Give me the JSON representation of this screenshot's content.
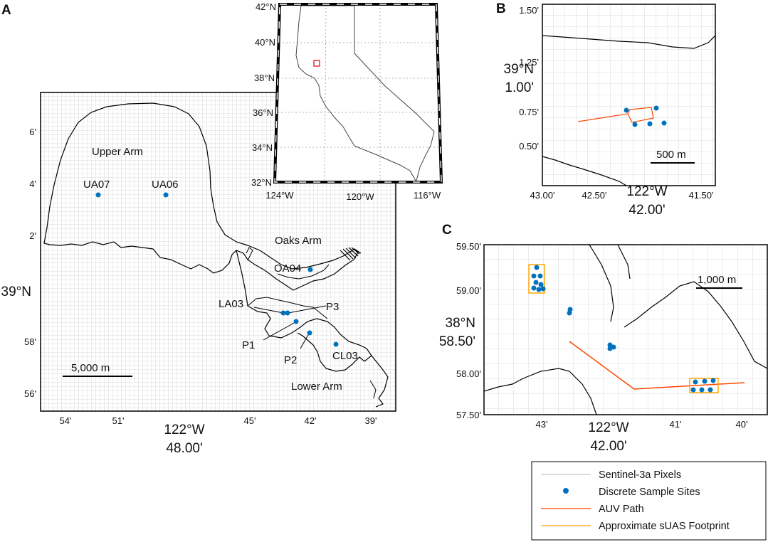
{
  "colors": {
    "grid": "#c8c8c8",
    "site": "#0072bd",
    "auv": "#ff4500",
    "suas": "#ffa500",
    "coast": "#000000",
    "inset_box": "#e00000"
  },
  "panel_a": {
    "label": "A",
    "y_ticks": [
      "6'",
      "4'",
      "2'",
      "58'",
      "56'"
    ],
    "y_major_lines": [
      "39°N",
      "N"
    ],
    "x_ticks": [
      "54'",
      "51'",
      "45'",
      "42'",
      "39'"
    ],
    "x_major_lines": [
      "122°W",
      "48.00'"
    ],
    "scale_bar": "5,000 m",
    "regions": {
      "upper": "Upper Arm",
      "oaks": "Oaks Arm",
      "lower": "Lower Arm"
    },
    "sites": [
      {
        "id": "UA07"
      },
      {
        "id": "UA06"
      },
      {
        "id": "OA04"
      },
      {
        "id": "LA03"
      },
      {
        "id": "P3"
      },
      {
        "id": "P1"
      },
      {
        "id": "P2"
      },
      {
        "id": "CL03"
      }
    ]
  },
  "inset": {
    "lat_ticks": [
      "42°N",
      "40°N",
      "38°N",
      "36°N",
      "34°N",
      "32°N"
    ],
    "lon_ticks": [
      "124°W",
      "120°W",
      "116°W"
    ]
  },
  "panel_b": {
    "label": "B",
    "y_ticks": [
      "1.50'",
      "1.25'",
      "0.75'",
      "0.50'"
    ],
    "y_major_lines": [
      "39°N",
      "1.00'"
    ],
    "x_ticks": [
      "43.00'",
      "42.50'",
      "41.50'"
    ],
    "x_major_lines": [
      "122°W",
      "42.00'"
    ],
    "scale_bar": "500 m"
  },
  "panel_c": {
    "label": "C",
    "y_ticks": [
      "59.50'",
      "59.00'",
      "58.00'",
      "57.50'"
    ],
    "y_major_lines": [
      "38°N",
      "58.50'"
    ],
    "x_ticks": [
      "43'",
      "41'",
      "40'"
    ],
    "x_major_lines": [
      "122°W",
      "42.00'"
    ],
    "scale_bar": "1,000 m"
  },
  "legend": {
    "items": [
      {
        "label": "Sentinel-3a Pixels",
        "symbol": "grid-line"
      },
      {
        "label": "Discrete Sample Sites",
        "symbol": "site-dot"
      },
      {
        "label": "AUV Path",
        "symbol": "auv-line"
      },
      {
        "label": "Approximate sUAS Footprint",
        "symbol": "suas-line"
      }
    ]
  }
}
